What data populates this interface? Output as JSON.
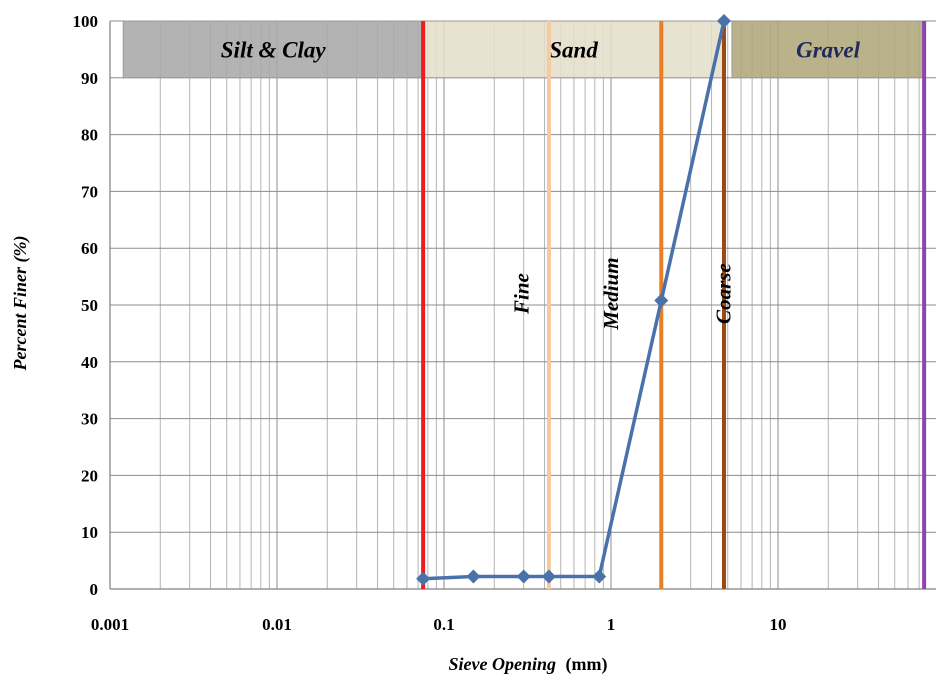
{
  "chart_data": {
    "type": "line",
    "xscale": "log",
    "xlim": [
      0.001,
      75
    ],
    "ylim": [
      0,
      100
    ],
    "grid": true,
    "xlabel_italic": "Sieve Opening",
    "xlabel_unit": "(mm)",
    "ylabel": "Percent Finer (%)",
    "x_ticks": [
      {
        "value": 0.001,
        "label": "0.001"
      },
      {
        "value": 0.01,
        "label": "0.01"
      },
      {
        "value": 0.1,
        "label": "0.1"
      },
      {
        "value": 1,
        "label": "1"
      },
      {
        "value": 10,
        "label": "10"
      }
    ],
    "y_ticks": [
      {
        "value": 0,
        "label": "0"
      },
      {
        "value": 10,
        "label": "10"
      },
      {
        "value": 20,
        "label": "20"
      },
      {
        "value": 30,
        "label": "30"
      },
      {
        "value": 40,
        "label": "40"
      },
      {
        "value": 50,
        "label": "50"
      },
      {
        "value": 60,
        "label": "60"
      },
      {
        "value": 70,
        "label": "70"
      },
      {
        "value": 80,
        "label": "80"
      },
      {
        "value": 90,
        "label": "90"
      },
      {
        "value": 100,
        "label": "100"
      }
    ],
    "series": [
      {
        "color": "#4a72aa",
        "x": [
          0.075,
          0.15,
          0.3,
          0.425,
          0.85,
          2.0,
          4.75
        ],
        "y": [
          1.8,
          2.2,
          2.2,
          2.2,
          2.2,
          50.8,
          100
        ]
      }
    ],
    "bands": [
      {
        "label": "Silt & Clay",
        "x_from": 0.0012,
        "x_to": 0.075,
        "y_from": 90,
        "y_to": 100,
        "fill": "#a9a9a9",
        "text_color": "#000000"
      },
      {
        "label": "Sand",
        "x_from": 0.075,
        "x_to": 4.75,
        "y_from": 90,
        "y_to": 100,
        "fill": "#e4dfc9",
        "text_color": "#000000"
      },
      {
        "label": "Gravel",
        "x_from": 5.3,
        "x_to": 75,
        "y_from": 90,
        "y_to": 100,
        "fill": "#b0a77a",
        "text_color": "#1f2a5a"
      }
    ],
    "boundaries": [
      {
        "x": 0.075,
        "color": "#ee1c1c"
      },
      {
        "x": 0.425,
        "color": "#f7c9a0"
      },
      {
        "x": 2.0,
        "color": "#e97f24"
      },
      {
        "x": 4.75,
        "color": "#9a4a12"
      },
      {
        "x": 75,
        "color": "#8e44ad"
      }
    ],
    "zone_labels": [
      {
        "label": "Fine",
        "x": 0.32,
        "y": 52
      },
      {
        "label": "Medium",
        "x": 1.1,
        "y": 52
      },
      {
        "label": "Coarse",
        "x": 5.2,
        "y": 52
      }
    ]
  }
}
